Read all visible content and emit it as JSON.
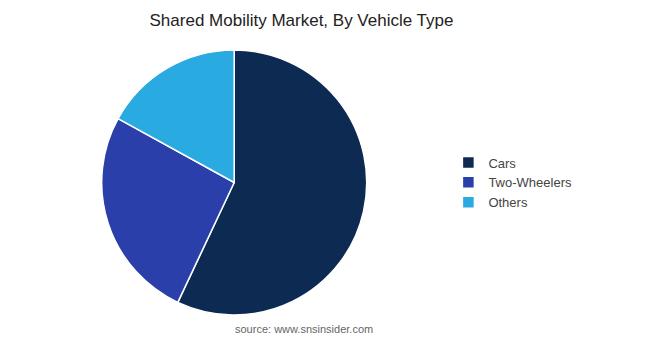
{
  "chart_data": {
    "type": "pie",
    "title": "Shared Mobility Market, By Vehicle Type",
    "categories": [
      "Cars",
      "Two-Wheelers",
      "Others"
    ],
    "values": [
      57,
      26,
      17
    ],
    "colors": [
      "#0d2b52",
      "#2b3faa",
      "#29abe2"
    ],
    "legend": "right",
    "annotations": [
      "source: www.snsinsider.com"
    ]
  }
}
